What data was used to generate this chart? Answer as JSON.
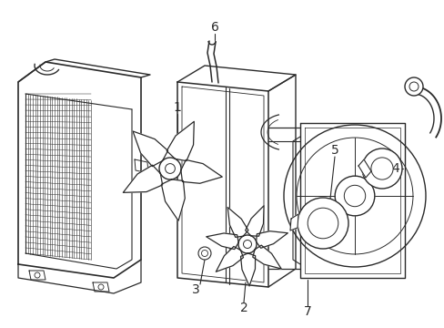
{
  "background_color": "#ffffff",
  "line_color": "#2a2a2a",
  "line_width": 1.0,
  "label_fontsize": 10,
  "figsize": [
    4.89,
    3.6
  ],
  "dpi": 100
}
